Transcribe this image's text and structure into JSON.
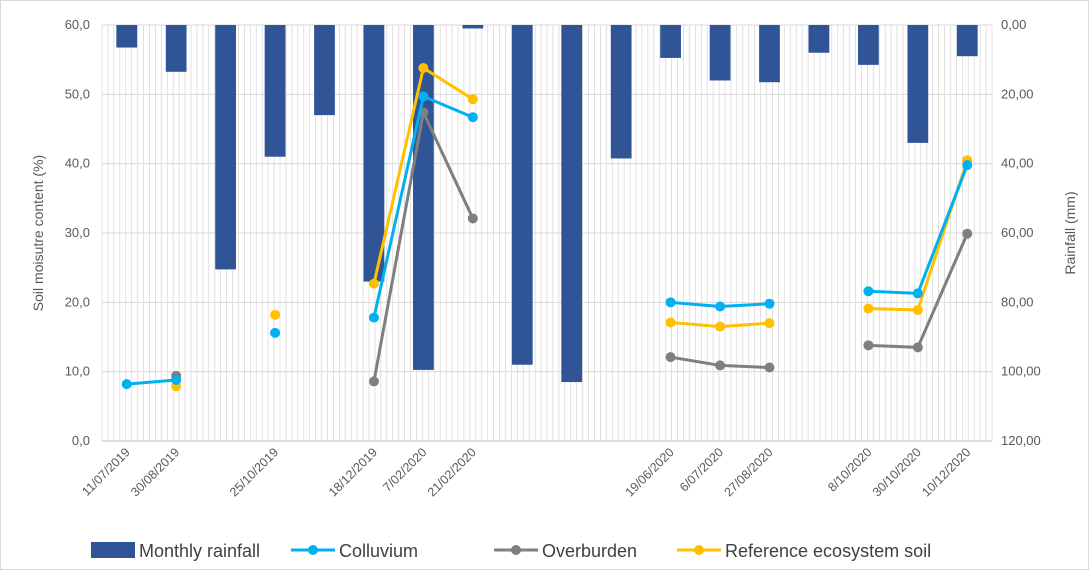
{
  "chart_data": {
    "type": "bar+line",
    "yleft": {
      "label": "Soil moisutre content (%)",
      "lim": [
        0,
        60
      ],
      "ticks": [
        "0,0",
        "10,0",
        "20,0",
        "30,0",
        "40,0",
        "50,0",
        "60,0"
      ]
    },
    "yright": {
      "label": "Rainfall (mm)",
      "lim": [
        0,
        120
      ],
      "inverted": true,
      "ticks": [
        "0,00",
        "20,00",
        "40,00",
        "60,00",
        "80,00",
        "100,00",
        "120,00"
      ]
    },
    "x_labels": [
      "11/07/2019",
      "30/08/2019",
      "25/10/2019",
      "18/12/2019",
      "7/02/2020",
      "21/02/2020",
      "19/06/2020",
      "6/07/2020",
      "27/08/2020",
      "8/10/2020",
      "30/10/2020",
      "10/12/2020"
    ],
    "rainfall": {
      "name": "Monthly rainfall",
      "color": "#2f5597",
      "values": [
        6.5,
        13.5,
        70.5,
        38,
        26,
        74,
        99.5,
        1,
        98,
        103,
        38.5,
        9.5,
        16,
        16.5,
        8,
        11.5,
        34,
        9
      ]
    },
    "series": [
      {
        "name": "Colluvium",
        "color": "#00b0f0",
        "values": [
          8.2,
          8.8,
          null,
          15.6,
          null,
          17.8,
          49.7,
          46.7,
          null,
          null,
          null,
          20.0,
          19.4,
          19.8,
          null,
          21.6,
          21.3,
          39.8
        ]
      },
      {
        "name": "Overburden",
        "color": "#7f7f7f",
        "values": [
          null,
          9.4,
          null,
          null,
          null,
          8.6,
          47.4,
          32.1,
          null,
          null,
          null,
          12.1,
          10.9,
          10.6,
          null,
          13.8,
          13.5,
          29.9
        ]
      },
      {
        "name": "Reference ecosystem soil",
        "color": "#ffc000",
        "values": [
          null,
          7.9,
          null,
          18.2,
          null,
          22.7,
          53.8,
          49.3,
          null,
          null,
          null,
          17.1,
          16.5,
          17.0,
          null,
          19.1,
          18.9,
          40.5
        ]
      }
    ],
    "legend_position": "bottom",
    "grid": true
  }
}
